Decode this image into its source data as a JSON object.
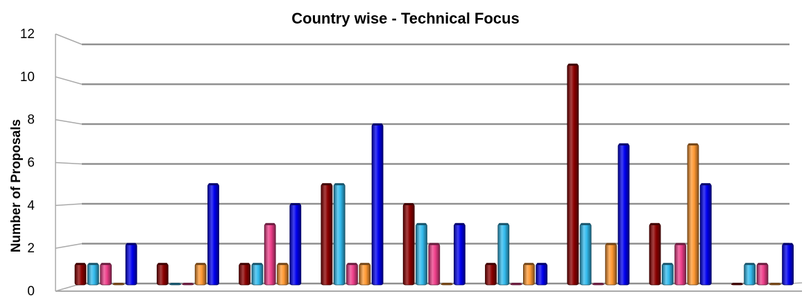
{
  "chart_data": {
    "type": "bar",
    "title": "Country wise - Technical Focus",
    "xlabel": "",
    "ylabel": "Number of Proposals",
    "ylim": [
      0,
      12
    ],
    "yticks": [
      0,
      2,
      4,
      6,
      8,
      10,
      12
    ],
    "grid": true,
    "categories": [
      "",
      "",
      "",
      "",
      "",
      "",
      "",
      "",
      ""
    ],
    "series": [
      {
        "color": "#8b0000",
        "values": [
          1,
          1,
          1,
          5,
          4,
          1,
          11,
          3,
          0
        ]
      },
      {
        "color": "#33bbee",
        "values": [
          1,
          0,
          1,
          5,
          3,
          3,
          3,
          1,
          1
        ]
      },
      {
        "color": "#ee3f8a",
        "values": [
          1,
          0,
          3,
          1,
          2,
          0,
          0,
          2,
          1
        ]
      },
      {
        "color": "#ff9933",
        "values": [
          0,
          1,
          1,
          1,
          0,
          1,
          2,
          7,
          0
        ]
      },
      {
        "color": "#0000ee",
        "values": [
          2,
          5,
          4,
          8,
          3,
          1,
          7,
          5,
          2
        ]
      }
    ]
  }
}
